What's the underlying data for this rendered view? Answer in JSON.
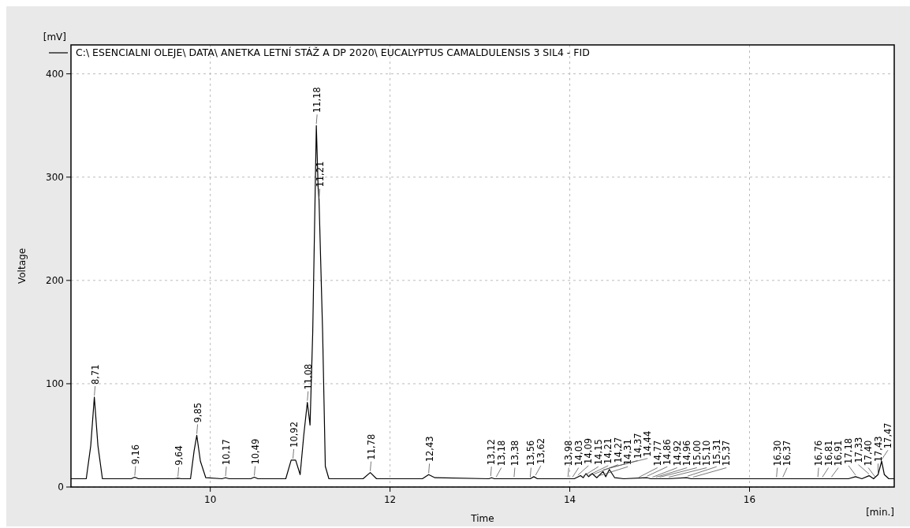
{
  "chart_data": {
    "type": "line",
    "xlabel": "Time",
    "ylabel": "Voltage",
    "xlim": [
      8.45,
      17.61
    ],
    "ylim": [
      0,
      428
    ],
    "xticks": [
      10,
      12,
      14,
      16
    ],
    "yticks": [
      0,
      100,
      200,
      300,
      400
    ],
    "grid": true,
    "legend": "top left",
    "line_style": "solid",
    "marker": "none",
    "series": [
      {
        "name": "C:\\ ESENCIALNI OLEJE\\ DATA\\ ANETKA LETNÍ STÁŽ A DP 2020\\ EUCALYPTUS CAMALDULENSIS 3 SIL4 - FID",
        "color": "#000000",
        "x": [
          8.45,
          8.62,
          8.67,
          8.71,
          8.75,
          8.8,
          9.12,
          9.16,
          9.2,
          9.6,
          9.64,
          9.68,
          9.78,
          9.82,
          9.85,
          9.89,
          9.95,
          10.13,
          10.17,
          10.21,
          10.45,
          10.49,
          10.53,
          10.84,
          10.9,
          10.95,
          11.0,
          11.04,
          11.08,
          11.11,
          11.14,
          11.18,
          11.2,
          11.21,
          11.25,
          11.28,
          11.32,
          11.7,
          11.78,
          11.85,
          12.36,
          12.43,
          12.5,
          13.1,
          13.13,
          13.16,
          13.56,
          13.6,
          13.64,
          14.05,
          14.12,
          14.15,
          14.18,
          14.21,
          14.25,
          14.3,
          14.37,
          14.4,
          14.44,
          14.5,
          14.6,
          14.86,
          14.9,
          15.1,
          15.3,
          15.35,
          16.3,
          17.1,
          17.18,
          17.25,
          17.33,
          17.38,
          17.43,
          17.47,
          17.5,
          17.55,
          17.61
        ],
        "values": [
          8,
          8,
          40,
          87,
          40,
          8,
          8,
          9.5,
          8,
          8,
          8.5,
          8,
          8,
          35,
          50,
          25,
          9,
          8,
          9,
          8,
          8,
          9.5,
          8,
          8,
          26,
          26,
          12,
          50,
          82,
          60,
          150,
          350,
          290,
          278,
          150,
          20,
          8,
          8,
          14,
          8,
          8,
          12,
          9,
          8,
          9,
          8,
          8,
          10,
          8,
          8,
          11,
          9,
          13,
          10,
          13,
          9,
          15,
          10,
          17,
          9,
          8,
          9,
          8,
          8,
          9,
          8,
          8,
          8,
          10,
          8,
          11,
          8,
          12,
          25,
          12,
          8,
          8
        ]
      }
    ],
    "annotations": [
      "[mV]",
      "[min.]",
      {
        "text": "8,71",
        "x": 8.71,
        "y": 87
      },
      {
        "text": "9,16",
        "x": 9.16,
        "y": 9.5
      },
      {
        "text": "9,64",
        "x": 9.64,
        "y": 8.5
      },
      {
        "text": "9,85",
        "x": 9.85,
        "y": 50
      },
      {
        "text": "10,17",
        "x": 10.17,
        "y": 9
      },
      {
        "text": "10,49",
        "x": 10.49,
        "y": 9.5
      },
      {
        "text": "10,92",
        "x": 10.92,
        "y": 26
      },
      {
        "text": "11,08",
        "x": 11.08,
        "y": 82
      },
      {
        "text": "11,18",
        "x": 11.18,
        "y": 350
      },
      {
        "text": "11,21",
        "x": 11.21,
        "y": 278
      },
      {
        "text": "11,78",
        "x": 11.78,
        "y": 14
      },
      {
        "text": "12,43",
        "x": 12.43,
        "y": 12
      },
      {
        "text": "13,12",
        "x": 13.12,
        "y": 9
      },
      {
        "text": "13,18",
        "x": 13.18,
        "y": 8
      },
      {
        "text": "13,38",
        "x": 13.38,
        "y": 8
      },
      {
        "text": "13,56",
        "x": 13.56,
        "y": 8
      },
      {
        "text": "13,62",
        "x": 13.62,
        "y": 10
      },
      {
        "text": "13,98",
        "x": 13.98,
        "y": 8
      },
      {
        "text": "14,03",
        "x": 14.03,
        "y": 8
      },
      {
        "text": "14,09",
        "x": 14.09,
        "y": 10
      },
      {
        "text": "14,15",
        "x": 14.15,
        "y": 9
      },
      {
        "text": "14,21",
        "x": 14.21,
        "y": 10
      },
      {
        "text": "14,27",
        "x": 14.27,
        "y": 11
      },
      {
        "text": "14,31",
        "x": 14.31,
        "y": 9
      },
      {
        "text": "14,37",
        "x": 14.37,
        "y": 15
      },
      {
        "text": "14,44",
        "x": 14.44,
        "y": 17
      },
      {
        "text": "14,77",
        "x": 14.77,
        "y": 8
      },
      {
        "text": "14,86",
        "x": 14.86,
        "y": 9
      },
      {
        "text": "14,92",
        "x": 14.92,
        "y": 8
      },
      {
        "text": "14,96",
        "x": 14.96,
        "y": 8
      },
      {
        "text": "15,00",
        "x": 15.0,
        "y": 8
      },
      {
        "text": "15,10",
        "x": 15.1,
        "y": 8
      },
      {
        "text": "15,31",
        "x": 15.31,
        "y": 9
      },
      {
        "text": "15,37",
        "x": 15.37,
        "y": 8
      },
      {
        "text": "16,30",
        "x": 16.3,
        "y": 8
      },
      {
        "text": "16,37",
        "x": 16.37,
        "y": 8
      },
      {
        "text": "16,76",
        "x": 16.76,
        "y": 8
      },
      {
        "text": "16,81",
        "x": 16.81,
        "y": 8
      },
      {
        "text": "16,91",
        "x": 16.91,
        "y": 8
      },
      {
        "text": "17,18",
        "x": 17.18,
        "y": 10
      },
      {
        "text": "17,33",
        "x": 17.33,
        "y": 11
      },
      {
        "text": "17,40",
        "x": 17.4,
        "y": 8
      },
      {
        "text": "17,43",
        "x": 17.43,
        "y": 12
      },
      {
        "text": "17,47",
        "x": 17.47,
        "y": 25
      }
    ]
  }
}
